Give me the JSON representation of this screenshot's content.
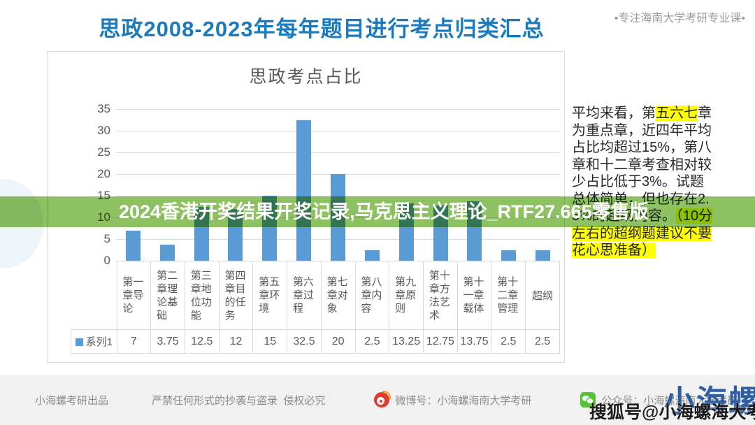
{
  "header": {
    "title": "思政2008-2023年每年题目进行考点归类汇总",
    "tagline": "•专注海南大学考研专业课•"
  },
  "overlay_banner": {
    "text": "2024香港开奖结果开奖记录,马克思主义理论_RTF27.665零售版",
    "background_color": "#8dc162",
    "text_color": "#ffffff"
  },
  "chart_data": {
    "type": "bar",
    "title": "思政考点占比",
    "series_name": "系列1",
    "categories": [
      "第一章导论",
      "第二章理论基础",
      "第三章地位功能",
      "第四章目的任务",
      "第五章环境",
      "第六章过程",
      "第七章对象",
      "第八章内容",
      "第九章原则",
      "第十章方法艺术",
      "第十一章载体",
      "第十二章管理",
      "超纲"
    ],
    "values": [
      7,
      3.75,
      12.5,
      12,
      15,
      32.5,
      20,
      2.5,
      13.25,
      12.75,
      13.75,
      2.5,
      2.5
    ],
    "yticks": [
      35,
      30,
      25,
      20,
      15,
      10,
      5,
      0
    ],
    "ylim": [
      0,
      35
    ],
    "grid": true,
    "bar_color": "#5B9BD5",
    "legend_position": "bottom-table"
  },
  "annotation": {
    "highlight_color": "#ffff00",
    "segments": [
      {
        "text": "平均来看，第",
        "highlight": false
      },
      {
        "text": "五六七",
        "highlight": true
      },
      {
        "text": "章为重点章，近四年平均占比均超过15%，第八章和十二章考查相对较少占比低于3%。试题总体简单，但也存在2.5%的超纲内容。",
        "highlight": false
      },
      {
        "text": "（10分左右的超纲题建议不要花心思准备）",
        "highlight": true
      }
    ]
  },
  "footer": {
    "produced_by": "小海螺考研出品",
    "warning": "严禁任何形式的抄袭与盗录  侵权必究",
    "weibo_label": "微博号：小海螺海南大学考研",
    "wechat_label": "公众号：小海螺海南大学考研"
  },
  "logo": {
    "text": "小海螺",
    "color": "#2e5fa3"
  },
  "watermark": {
    "text": "搜狐号@小海螺海大考研"
  }
}
